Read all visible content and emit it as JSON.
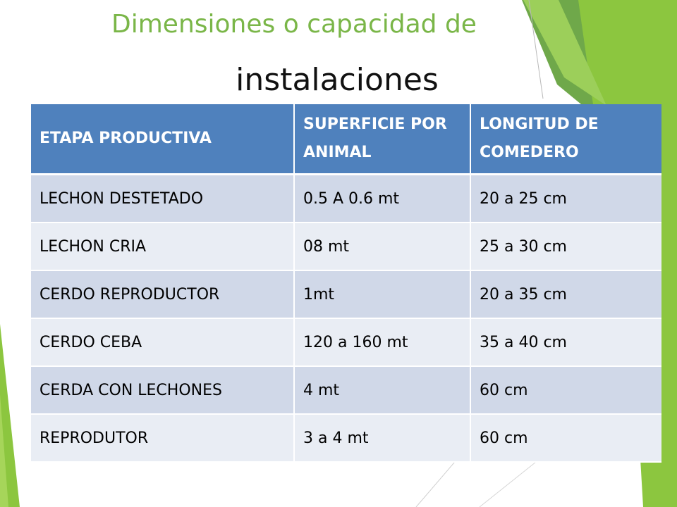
{
  "slide": {
    "title_line1": "Dimensiones o capacidad de",
    "title_line2": "instalaciones"
  },
  "colors": {
    "title_green": "#7ab648",
    "header_blue": "#4f81bd",
    "row_odd": "#d0d8e8",
    "row_even": "#e9edf4"
  },
  "table": {
    "headers": [
      "ETAPA PRODUCTIVA",
      "SUPERFICIE POR ANIMAL",
      "LONGITUD DE COMEDERO"
    ],
    "rows": [
      [
        "LECHON DESTETADO",
        "0.5 A 0.6 mt",
        "20 a 25 cm"
      ],
      [
        "LECHON CRIA",
        "08 mt",
        "25 a 30 cm"
      ],
      [
        "CERDO REPRODUCTOR",
        "1mt",
        "20 a 35 cm"
      ],
      [
        "CERDO CEBA",
        "120 a 160 mt",
        "35 a 40 cm"
      ],
      [
        "CERDA CON LECHONES",
        "4 mt",
        "60 cm"
      ],
      [
        "REPRODUTOR",
        "3 a 4 mt",
        "60 cm"
      ]
    ]
  }
}
